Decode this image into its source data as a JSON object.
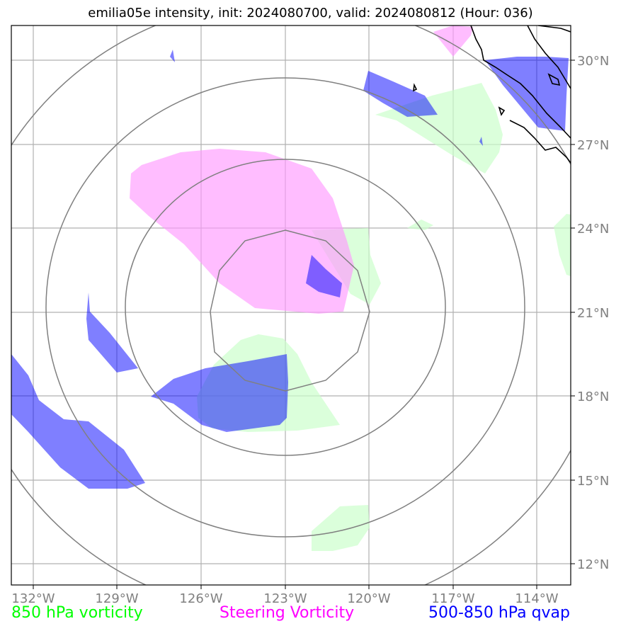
{
  "title": "emilia05e intensity, init: 2024080700, valid: 2024080812 (Hour: 036)",
  "legend": {
    "green": "850 hPa vorticity",
    "magenta": "Steering Vorticity",
    "blue": "500-850 hPa qvap"
  },
  "axes": {
    "x_ticks": [
      "132°W",
      "129°W",
      "126°W",
      "123°W",
      "120°W",
      "117°W",
      "114°W"
    ],
    "y_ticks": [
      "30°N",
      "27°N",
      "24°N",
      "21°N",
      "18°N",
      "15°N",
      "12°N"
    ]
  },
  "colors": {
    "green_fill": "#ccffcc",
    "magenta_fill": "#ff99ff",
    "blue_fill": "#0000ff",
    "grid": "#b0b0b0",
    "range_rings": "#808080",
    "coastline": "#000000"
  }
}
